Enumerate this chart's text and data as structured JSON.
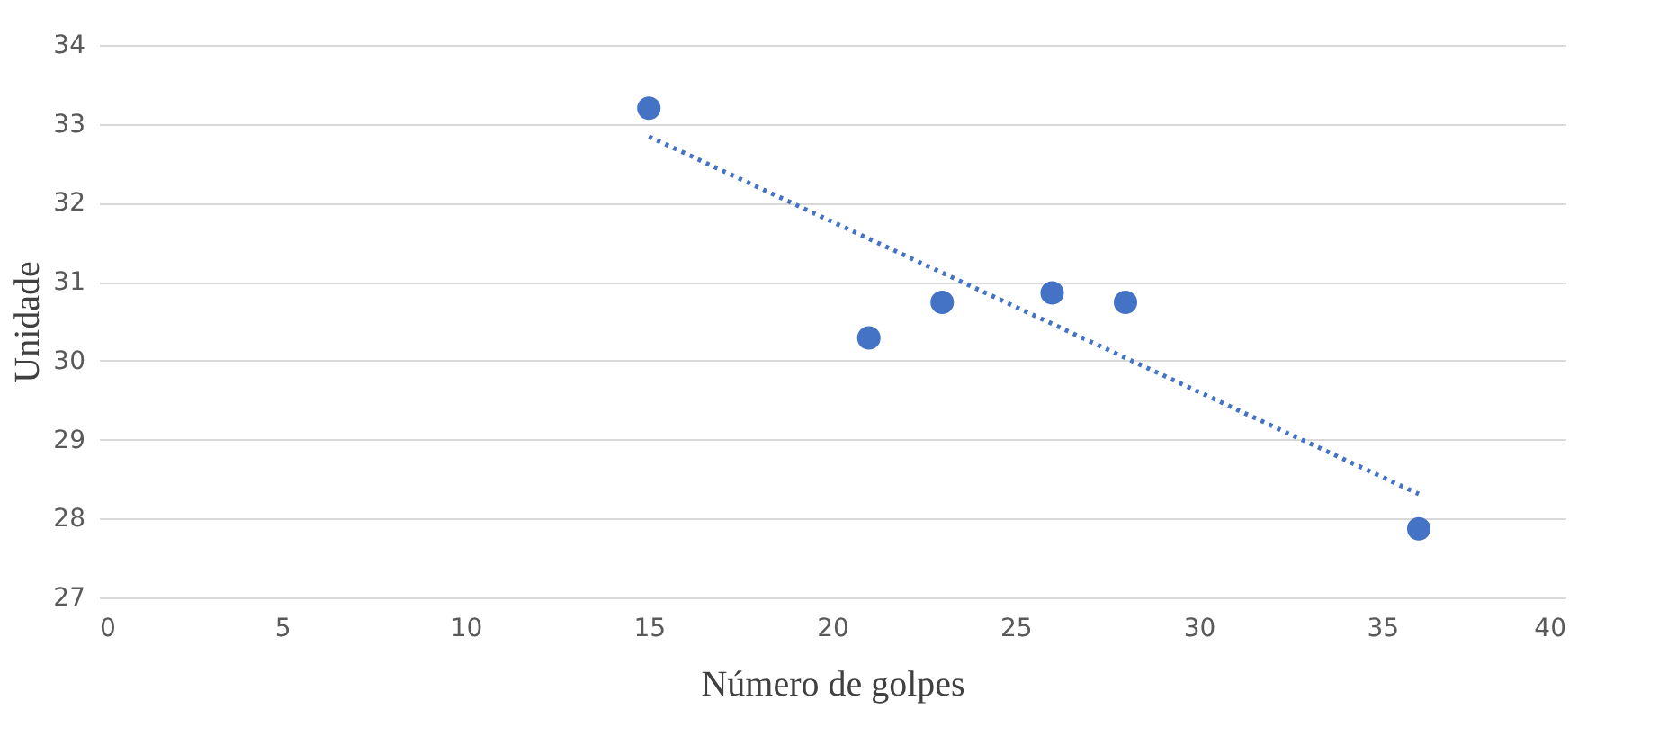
{
  "chart_data": {
    "type": "scatter",
    "xlabel": "Número de golpes",
    "ylabel": "Unidade",
    "series": [
      {
        "color": "#4472c4",
        "marker": "circle",
        "x": [
          15,
          21,
          23,
          26,
          28,
          36
        ],
        "values": [
          33.2,
          30.29,
          30.74,
          30.86,
          30.74,
          27.87
        ]
      },
      {
        "type": "line",
        "color": "#4472c4",
        "line_style": "dotted",
        "x": [
          15,
          36
        ],
        "values": [
          32.84,
          28.31
        ]
      }
    ],
    "xlim": [
      0,
      40
    ],
    "xticks": [
      0,
      5,
      10,
      15,
      20,
      25,
      30,
      35,
      40
    ],
    "ylim": [
      27,
      34
    ],
    "yticks": [
      27,
      28,
      29,
      30,
      31,
      32,
      33,
      34
    ],
    "grid": "y"
  }
}
